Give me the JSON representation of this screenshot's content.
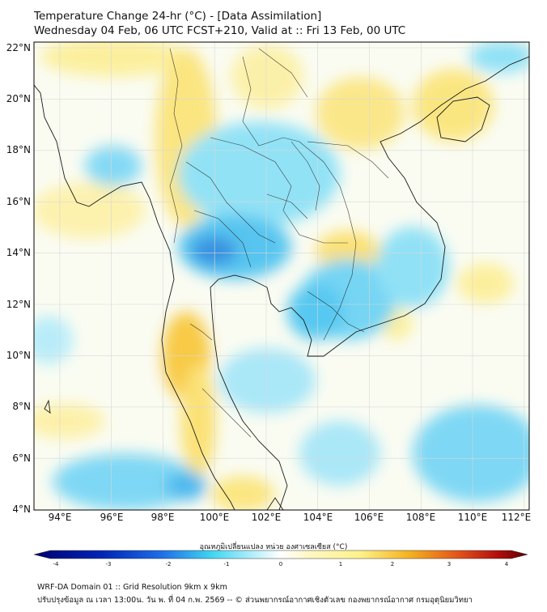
{
  "title": {
    "line1": "Temperature Change 24-hr (°C) - [Data Assimilation]",
    "line2": "Wednesday 04 Feb, 06 UTC FCST+210, Valid at :: Fri 13 Feb, 00 UTC"
  },
  "map": {
    "lat_range": [
      4,
      22
    ],
    "lon_range": [
      93,
      112.2
    ],
    "lat_ticks": [
      "22°N",
      "20°N",
      "18°N",
      "16°N",
      "14°N",
      "12°N",
      "10°N",
      "8°N",
      "6°N",
      "4°N"
    ],
    "lon_ticks": [
      "94°E",
      "96°E",
      "98°E",
      "100°E",
      "102°E",
      "104°E",
      "106°E",
      "108°E",
      "110°E",
      "112°E"
    ]
  },
  "colorbar": {
    "label": "อุณหภูมิเปลี่ยนแปลง หน่วย องศาเซลเซียส (°C)",
    "ticks": [
      "-4",
      "-3",
      "-2",
      "-1",
      "0",
      "1",
      "2",
      "3",
      "4"
    ],
    "min": -4,
    "max": 4,
    "colors": {
      "cold_dark": "#000070",
      "blue": "#1f5fe0",
      "cyan": "#3fd6f2",
      "white": "#ffffff",
      "yellow": "#fdf28a",
      "orange": "#f59a1a",
      "red": "#d61a0a",
      "dark_red": "#5c0000"
    }
  },
  "footer": {
    "line1": "WRF-DA Domain 01 :: Grid Resolution 9km x 9km",
    "line2": "ปรับปรุงข้อมูล ณ เวลา 13:00น. วัน พ. ที่ 04 ก.พ. 2569 -- © ส่วนพยากรณ์อากาศเชิงตัวเลข กองพยากรณ์อากาศ กรมอุตุนิยมวิทยา"
  }
}
